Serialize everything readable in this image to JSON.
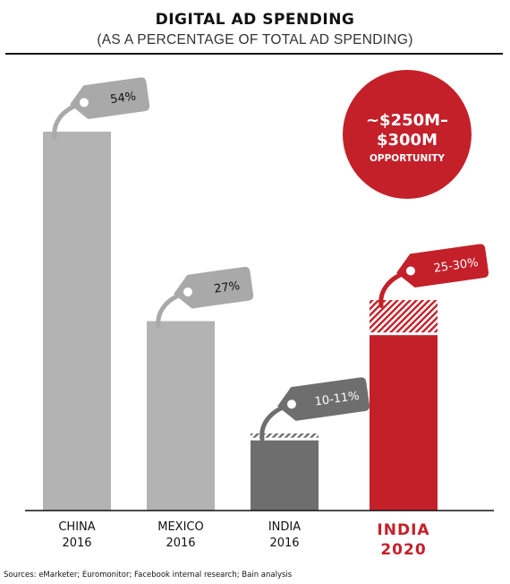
{
  "header": {
    "title": "DIGITAL AD SPENDING",
    "subtitle": "(AS A PERCENTAGE OF TOTAL AD SPENDING)"
  },
  "source_note": "Sources: eMarketer; Euromonitor; Facebook internal research; Bain analysis",
  "chart_data": {
    "type": "bar",
    "title": "DIGITAL AD SPENDING",
    "subtitle": "(AS A PERCENTAGE OF TOTAL AD SPENDING)",
    "ylim": [
      0,
      54
    ],
    "bars": [
      {
        "label_line1": "CHINA",
        "label_line2": "2016",
        "value": 54,
        "range_low": 54,
        "range_high": 54,
        "tag": "54%",
        "color": "#b3b3b3",
        "tag_color": "#a9a9a9",
        "highlight": false
      },
      {
        "label_line1": "MEXICO",
        "label_line2": "2016",
        "value": 27,
        "range_low": 27,
        "range_high": 27,
        "tag": "27%",
        "color": "#b3b3b3",
        "tag_color": "#a9a9a9",
        "highlight": false
      },
      {
        "label_line1": "INDIA",
        "label_line2": "2016",
        "value": 10,
        "range_low": 10,
        "range_high": 11,
        "tag": "10-11%",
        "color": "#6e6e6e",
        "tag_color": "#6e6e6e",
        "highlight": false
      },
      {
        "label_line1": "INDIA",
        "label_line2": "2020",
        "value": 25,
        "range_low": 25,
        "range_high": 30,
        "tag": "25-30%",
        "color": "#c4202a",
        "tag_color": "#c4202a",
        "highlight": true
      }
    ],
    "callout": {
      "line1": "~$250M–",
      "line2": "$300M",
      "line3": "OPPORTUNITY",
      "color": "#c4202a"
    }
  }
}
